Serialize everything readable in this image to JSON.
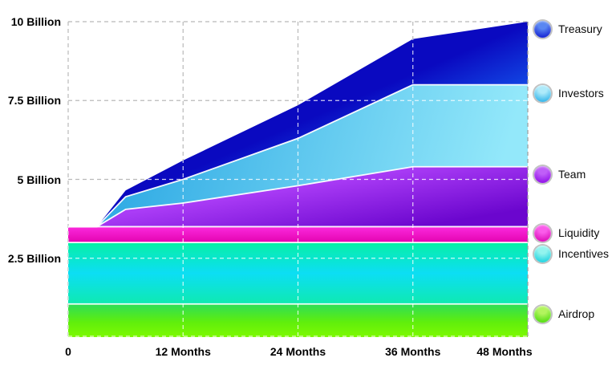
{
  "background_color": "#ffffff",
  "chart_data": {
    "type": "area",
    "stacked": true,
    "title": "",
    "x_unit": "Months",
    "y_unit": "Billion tokens",
    "total_supply_billions": 10,
    "months": [
      0,
      3,
      6,
      12,
      24,
      36,
      48
    ],
    "series": [
      {
        "name": "Airdrop",
        "values": [
          1.05,
          1.05,
          1.05,
          1.05,
          1.05,
          1.05,
          1.05
        ],
        "stops": [
          [
            0,
            "#2cdd5b"
          ],
          [
            0.55,
            "#5fee0c"
          ],
          [
            1,
            "#7ef902"
          ]
        ]
      },
      {
        "name": "Incentives",
        "values": [
          1.95,
          1.95,
          1.95,
          1.95,
          1.95,
          1.95,
          1.95
        ],
        "stops": [
          [
            0,
            "#07f0a4"
          ],
          [
            0.5,
            "#0cdef4"
          ],
          [
            1,
            "#0feab0"
          ]
        ]
      },
      {
        "name": "Liquidity",
        "values": [
          0.5,
          0.5,
          0.5,
          0.5,
          0.5,
          0.5,
          0.5
        ],
        "stops": [
          [
            0,
            "#fb2ade"
          ],
          [
            1,
            "#e301ae"
          ]
        ]
      },
      {
        "name": "Team",
        "values": [
          0,
          0,
          0.55,
          0.75,
          1.3,
          1.9,
          1.9
        ],
        "stops": [
          [
            0,
            "#aa3cf6"
          ],
          [
            1,
            "#6b06ce"
          ]
        ]
      },
      {
        "name": "Investors",
        "values": [
          0,
          0,
          0.4,
          0.75,
          1.5,
          2.6,
          2.6
        ],
        "stops": [
          [
            0,
            "#2aa7e3"
          ],
          [
            1,
            "#93e8fa"
          ]
        ]
      },
      {
        "name": "Treasury",
        "values": [
          0,
          0,
          0.2,
          0.6,
          1.05,
          1.45,
          2.0
        ],
        "stops": [
          [
            0,
            "#0a09c0"
          ],
          [
            1,
            "#155ff2"
          ]
        ]
      }
    ],
    "x_axis": {
      "ticks": [
        {
          "month": 0,
          "label": "0"
        },
        {
          "month": 12,
          "label": "12 Months"
        },
        {
          "month": 24,
          "label": "24 Months"
        },
        {
          "month": 36,
          "label": "36 Months"
        },
        {
          "month": 48,
          "label": "48 Months"
        }
      ]
    },
    "y_axis": {
      "ticks": [
        {
          "value": 2.5,
          "label": "2.5 Billion"
        },
        {
          "value": 5,
          "label": "5 Billion"
        },
        {
          "value": 7.5,
          "label": "7.5 Billion"
        },
        {
          "value": 10,
          "label": "10 Billion"
        }
      ],
      "max": 10
    },
    "grid": {
      "color": "#b9b9b9",
      "overlay_color": "rgba(255,255,255,0.8)",
      "dash": "5 4",
      "separator_color": "#ffffff"
    },
    "legend": [
      {
        "label": "Treasury",
        "series": "Treasury",
        "circle": [
          "#5a87f2",
          "#0a14cf"
        ]
      },
      {
        "label": "Investors",
        "series": "Investors",
        "circle": [
          "#aeeafa",
          "#22aee8"
        ]
      },
      {
        "label": "Team",
        "series": "Team",
        "circle": [
          "#c05ef8",
          "#8a06e6"
        ]
      },
      {
        "label": "Liquidity",
        "series": "Liquidity",
        "circle": [
          "#fa5cea",
          "#d800b2"
        ]
      },
      {
        "label": "Incentives",
        "series": "Incentives",
        "circle": [
          "#93f4ee",
          "#0fcede"
        ]
      },
      {
        "label": "Airdrop",
        "series": "Airdrop",
        "circle": [
          "#b2f45e",
          "#43da06"
        ]
      }
    ]
  }
}
